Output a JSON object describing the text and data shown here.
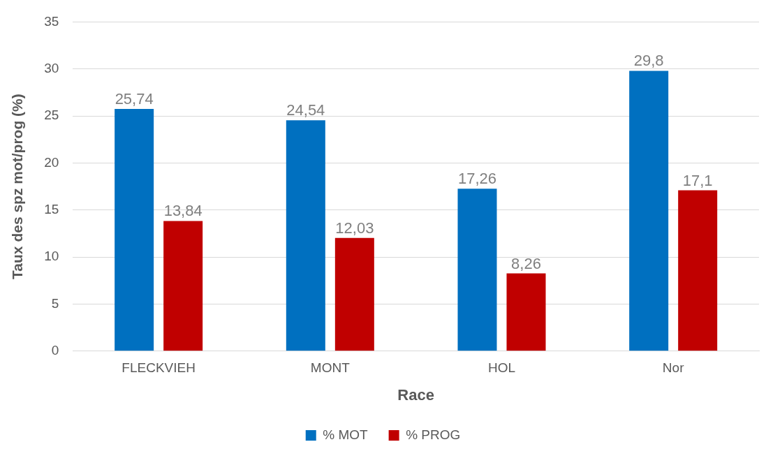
{
  "chart_data": {
    "type": "bar",
    "xlabel": "Race",
    "ylabel": "Taux des spz mot/prog (%)",
    "categories": [
      "FLECKVIEH",
      "MONT",
      "HOL",
      "Nor"
    ],
    "series": [
      {
        "name": "% MOT",
        "color": "#0070c0",
        "values": [
          25.74,
          24.54,
          17.26,
          29.8
        ],
        "value_labels": [
          "25,74",
          "24,54",
          "17,26",
          "29,8"
        ]
      },
      {
        "name": "% PROG",
        "color": "#c00000",
        "values": [
          13.84,
          12.03,
          8.26,
          17.1
        ],
        "value_labels": [
          "13,84",
          "12,03",
          "8,26",
          "17,1"
        ]
      }
    ],
    "ylim": [
      0,
      35
    ],
    "yticks": [
      0,
      5,
      10,
      15,
      20,
      25,
      30,
      35
    ],
    "grid": "y",
    "legend": "bottom"
  }
}
